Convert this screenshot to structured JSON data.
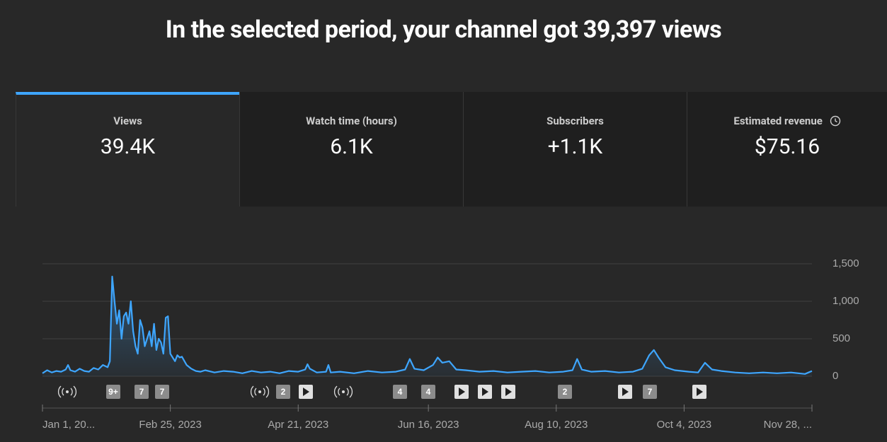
{
  "header": {
    "title": "In the selected period, your channel got 39,397 views"
  },
  "tabs": [
    {
      "label": "Views",
      "value": "39.4K"
    },
    {
      "label": "Watch time (hours)",
      "value": "6.1K"
    },
    {
      "label": "Subscribers",
      "value": "+1.1K"
    },
    {
      "label": "Estimated revenue",
      "value": "$75.16"
    }
  ],
  "markers": [
    "9+",
    "7",
    "7",
    "2",
    "4",
    "4",
    "2",
    "7"
  ],
  "chart_data": {
    "type": "line",
    "color": "#3ea6ff",
    "x": [
      0,
      2,
      4,
      6,
      8,
      10,
      11,
      12,
      14,
      16,
      18,
      20,
      22,
      24,
      26,
      28,
      29,
      30,
      31,
      32,
      33,
      34,
      35,
      36,
      37,
      38,
      39,
      40,
      41,
      42,
      43,
      44,
      45,
      46,
      47,
      48,
      49,
      50,
      51,
      52,
      53,
      54,
      55,
      56,
      57,
      58,
      59,
      60,
      62,
      64,
      66,
      68,
      70,
      74,
      78,
      82,
      86,
      90,
      94,
      98,
      102,
      106,
      110,
      113,
      114,
      115,
      118,
      122,
      123,
      124,
      128,
      134,
      140,
      146,
      152,
      156,
      158,
      160,
      164,
      168,
      170,
      172,
      175,
      178,
      182,
      188,
      194,
      200,
      206,
      212,
      218,
      224,
      228,
      230,
      232,
      236,
      242,
      248,
      254,
      258,
      261,
      263,
      265,
      268,
      272,
      278,
      282,
      285,
      288,
      292,
      298,
      304,
      310,
      316,
      322,
      328,
      331
    ],
    "values": [
      40,
      80,
      50,
      70,
      60,
      90,
      150,
      80,
      60,
      100,
      70,
      60,
      110,
      90,
      150,
      120,
      200,
      1330,
      1000,
      700,
      880,
      500,
      800,
      850,
      700,
      1000,
      600,
      400,
      300,
      750,
      650,
      400,
      500,
      600,
      400,
      700,
      350,
      500,
      450,
      300,
      780,
      800,
      300,
      250,
      200,
      280,
      250,
      260,
      150,
      100,
      70,
      60,
      80,
      50,
      70,
      60,
      40,
      70,
      50,
      60,
      40,
      70,
      60,
      90,
      160,
      100,
      50,
      60,
      150,
      50,
      60,
      40,
      70,
      50,
      60,
      90,
      230,
      100,
      80,
      150,
      250,
      180,
      200,
      90,
      80,
      60,
      70,
      50,
      60,
      70,
      50,
      60,
      80,
      230,
      90,
      60,
      70,
      50,
      60,
      100,
      280,
      350,
      250,
      120,
      80,
      60,
      50,
      180,
      90,
      70,
      50,
      40,
      50,
      40,
      50,
      30,
      70
    ],
    "xlim": [
      0,
      331
    ],
    "ylim": [
      0,
      1500
    ],
    "yticks": [
      0,
      500,
      {
        "value": 1000,
        "label": "1,000"
      },
      {
        "value": 1500,
        "label": "1,500"
      }
    ],
    "xticks": [
      {
        "value": 0,
        "label": "Jan 1, 20..."
      },
      {
        "value": 55,
        "label": "Feb 25, 2023"
      },
      {
        "value": 110,
        "label": "Apr 21, 2023"
      },
      {
        "value": 166,
        "label": "Jun 16, 2023"
      },
      {
        "value": 221,
        "label": "Aug 10, 2023"
      },
      {
        "value": 276,
        "label": "Oct 4, 2023"
      },
      {
        "value": 331,
        "label": "Nov 28, ..."
      }
    ],
    "grid": true
  }
}
